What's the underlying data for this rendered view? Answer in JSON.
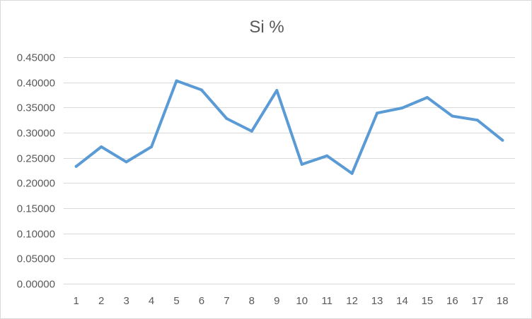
{
  "chart_data": {
    "type": "line",
    "title": "Si %",
    "xlabel": "",
    "ylabel": "",
    "categories": [
      "1",
      "2",
      "3",
      "4",
      "5",
      "6",
      "7",
      "8",
      "9",
      "10",
      "11",
      "12",
      "13",
      "14",
      "15",
      "16",
      "17",
      "18"
    ],
    "series": [
      {
        "values": [
          0.233,
          0.272,
          0.242,
          0.272,
          0.403,
          0.385,
          0.328,
          0.303,
          0.384,
          0.237,
          0.254,
          0.219,
          0.339,
          0.349,
          0.37,
          0.333,
          0.325,
          0.285
        ]
      }
    ],
    "ylim": [
      0,
      0.45
    ],
    "yticks": [
      "0.00000",
      "0.05000",
      "0.10000",
      "0.15000",
      "0.20000",
      "0.25000",
      "0.30000",
      "0.35000",
      "0.40000",
      "0.45000"
    ],
    "grid": true,
    "legend": "none",
    "colors": {
      "line": "#5b9bd5",
      "grid": "#d9d9d9",
      "text": "#595959",
      "border": "#d9d9d9"
    }
  }
}
